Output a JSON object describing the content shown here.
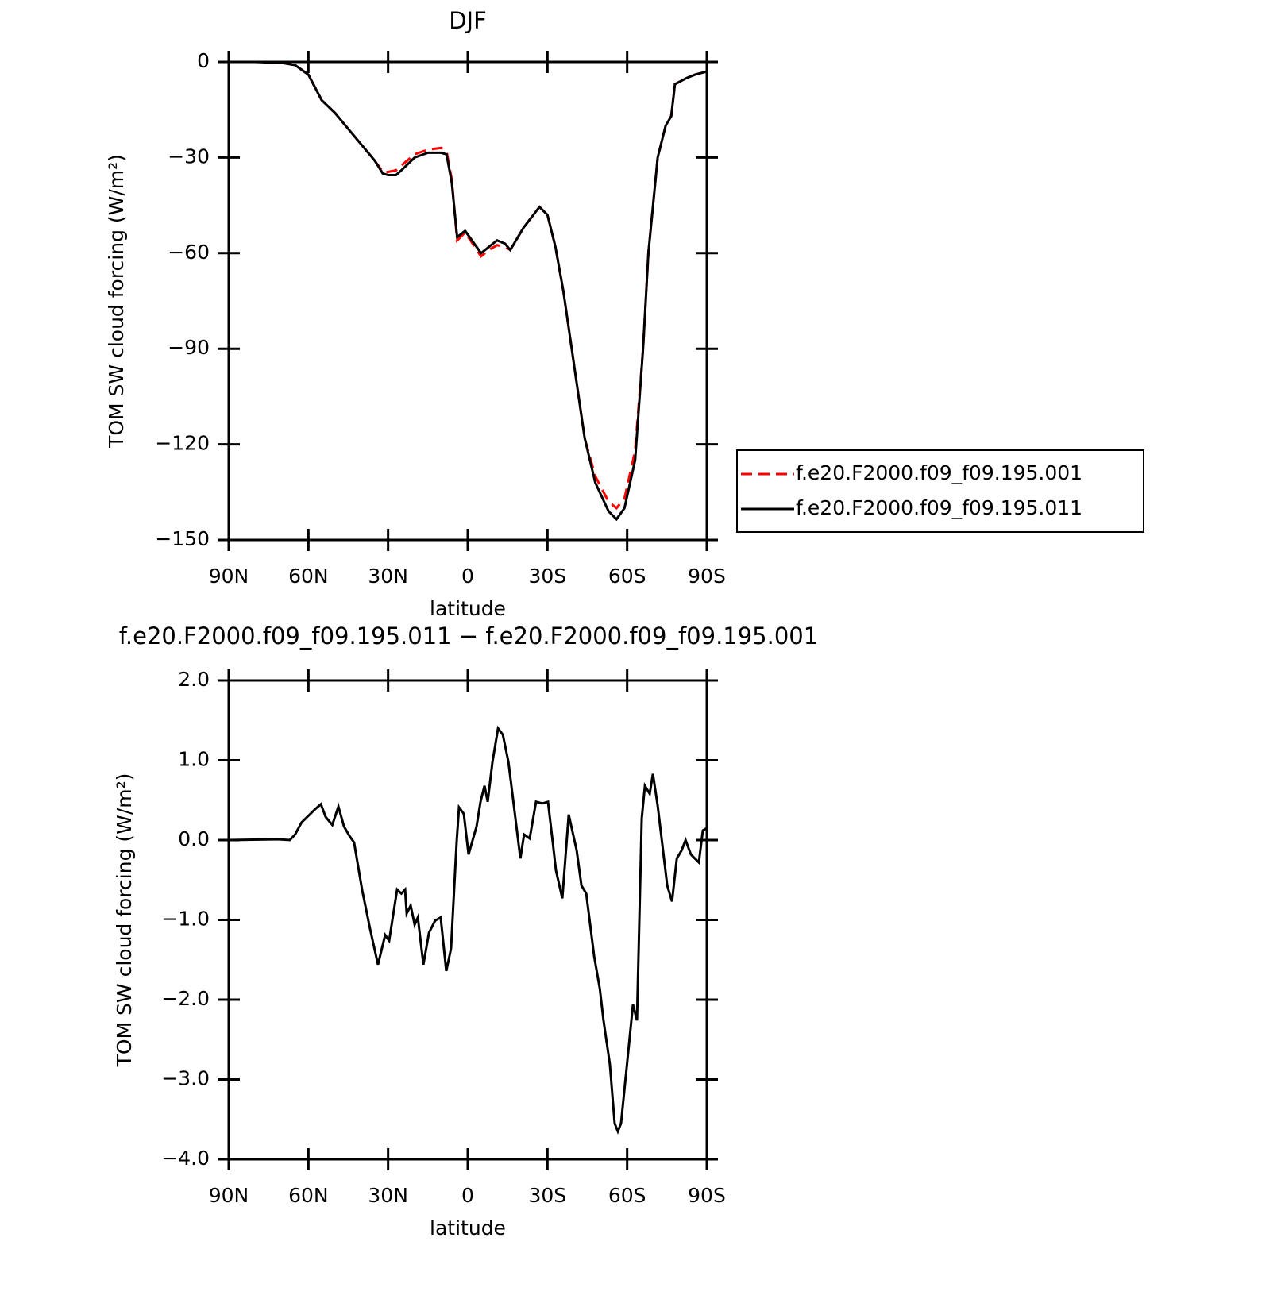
{
  "chart_data": [
    {
      "type": "line",
      "title": "DJF",
      "xlabel": "latitude",
      "ylabel": "TOM SW cloud forcing (W/m²)",
      "x": [
        90,
        80,
        70,
        65,
        60,
        55,
        50,
        45,
        40,
        35,
        32,
        30,
        27,
        25,
        20,
        15,
        10,
        8,
        6,
        4,
        1,
        -5,
        -8,
        -11,
        -14,
        -16,
        -21,
        -27,
        -30,
        -33,
        -36,
        -40,
        -44,
        -48,
        -53,
        -56,
        -59,
        -63,
        -66,
        -68,
        -71.5,
        -74.5,
        -76.6,
        -78,
        -82.5,
        -85.5,
        -90
      ],
      "series": [
        {
          "name": "f.e20.F2000.f09_f09.195.001",
          "color": "#ff0000",
          "line_style": "dashed",
          "values": [
            0,
            0,
            -0.3,
            -1,
            -4,
            -12,
            -16,
            -21,
            -26,
            -31,
            -34.5,
            -34.5,
            -34,
            -32.5,
            -29,
            -27.5,
            -27,
            -28,
            -37,
            -56,
            -53.5,
            -61,
            -59,
            -57.5,
            -58,
            -59,
            -52,
            -45.5,
            -48,
            -58,
            -72,
            -95,
            -118,
            -130,
            -138,
            -140,
            -137,
            -122,
            -90,
            -60,
            -30,
            -20,
            -17,
            -7,
            -5,
            -4,
            -3
          ]
        },
        {
          "name": "f.e20.F2000.f09_f09.195.011",
          "color": "#000000",
          "line_style": "solid",
          "values": [
            0,
            0,
            -0.3,
            -1,
            -4,
            -12,
            -16,
            -21,
            -26,
            -31,
            -35,
            -35.5,
            -35.5,
            -34,
            -30,
            -28.5,
            -28.5,
            -29,
            -38,
            -55,
            -53,
            -60,
            -58,
            -56,
            -57,
            -59,
            -52,
            -45.5,
            -48,
            -58,
            -72,
            -95,
            -118,
            -132,
            -141,
            -143.5,
            -140,
            -125,
            -90,
            -60,
            -30,
            -20,
            -17,
            -7,
            -5,
            -4,
            -3
          ]
        }
      ],
      "xlim": [
        90,
        -90
      ],
      "xticks": [
        {
          "value": 90,
          "label": "90N"
        },
        {
          "value": 60,
          "label": "60N"
        },
        {
          "value": 30,
          "label": "30N"
        },
        0,
        {
          "value": -30,
          "label": "30S"
        },
        {
          "value": -60,
          "label": "60S"
        },
        {
          "value": -90,
          "label": "90S"
        }
      ],
      "ylim": [
        -150,
        0
      ],
      "yticks": [
        0,
        {
          "value": -30,
          "label": "−30"
        },
        {
          "value": -60,
          "label": "−60"
        },
        {
          "value": -90,
          "label": "−90"
        },
        {
          "value": -120,
          "label": "−120"
        },
        {
          "value": -150,
          "label": "−150"
        }
      ],
      "legend": "right"
    },
    {
      "type": "line",
      "title": "f.e20.F2000.f09_f09.195.011 − f.e20.F2000.f09_f09.195.001",
      "xlabel": "latitude",
      "ylabel": "TOM SW cloud forcing (W/m²)",
      "x": [
        90,
        71.5,
        67,
        65,
        62.6,
        59.5,
        57.7,
        55.3,
        53.5,
        51,
        48.7,
        46.6,
        44.5,
        42.8,
        39.8,
        36.8,
        33.8,
        31.1,
        29.6,
        26.6,
        25,
        23.6,
        23,
        21.5,
        20,
        18.8,
        16.7,
        14.6,
        12.3,
        10.2,
        8.1,
        6.3,
        4.2,
        3.3,
        1.5,
        -0.3,
        -3.3,
        -4.8,
        -6.3,
        -7.5,
        -9.3,
        -11.4,
        -13.2,
        -15.3,
        -16.8,
        -19.8,
        -21.2,
        -23.3,
        -25.7,
        -28.1,
        -30.2,
        -32,
        -33.2,
        -35.6,
        -38,
        -41,
        -42.8,
        -44.6,
        -47.6,
        -49.7,
        -51.1,
        -53.5,
        -55.3,
        -56.5,
        -57.7,
        -60.1,
        -62.2,
        -63.7,
        -65.5,
        -66.7,
        -68.5,
        -69.7,
        -71.5,
        -75.1,
        -76.9,
        -78.7,
        -80.5,
        -82,
        -84,
        -87,
        -88.5,
        -90
      ],
      "series": [
        {
          "color": "#000000",
          "line_style": "solid",
          "values": [
            0,
            0.01,
            0,
            0.07,
            0.22,
            0.32,
            0.38,
            0.45,
            0.29,
            0.19,
            0.42,
            0.17,
            0.05,
            -0.03,
            -0.62,
            -1.11,
            -1.56,
            -1.19,
            -1.26,
            -0.62,
            -0.67,
            -0.62,
            -0.92,
            -0.82,
            -1.06,
            -0.97,
            -1.56,
            -1.16,
            -1.01,
            -0.97,
            -1.64,
            -1.36,
            -0.03,
            0.41,
            0.33,
            -0.18,
            0.17,
            0.48,
            0.68,
            0.48,
            0.98,
            1.4,
            1.32,
            0.98,
            0.58,
            -0.23,
            0.07,
            0.02,
            0.48,
            0.46,
            0.48,
            -0.03,
            -0.38,
            -0.73,
            0.32,
            -0.13,
            -0.57,
            -0.67,
            -1.46,
            -1.86,
            -2.26,
            -2.81,
            -3.55,
            -3.65,
            -3.55,
            -2.76,
            -2.06,
            -2.26,
            0.27,
            0.68,
            0.58,
            0.83,
            0.43,
            -0.57,
            -0.77,
            -0.23,
            -0.13,
            0,
            -0.18,
            -0.28,
            0.12,
            0.15
          ]
        }
      ],
      "xlim": [
        90,
        -90
      ],
      "xticks": [
        {
          "value": 90,
          "label": "90N"
        },
        {
          "value": 60,
          "label": "60N"
        },
        {
          "value": 30,
          "label": "30N"
        },
        0,
        {
          "value": -30,
          "label": "30S"
        },
        {
          "value": -60,
          "label": "60S"
        },
        {
          "value": -90,
          "label": "90S"
        }
      ],
      "ylim": [
        -4,
        2
      ],
      "yticks": [
        {
          "value": 2,
          "label": "2.0"
        },
        {
          "value": 1,
          "label": "1.0"
        },
        {
          "value": 0,
          "label": "0.0"
        },
        {
          "value": -1,
          "label": "−1.0"
        },
        {
          "value": -2,
          "label": "−2.0"
        },
        {
          "value": -3,
          "label": "−3.0"
        },
        {
          "value": -4,
          "label": "−4.0"
        }
      ]
    }
  ]
}
